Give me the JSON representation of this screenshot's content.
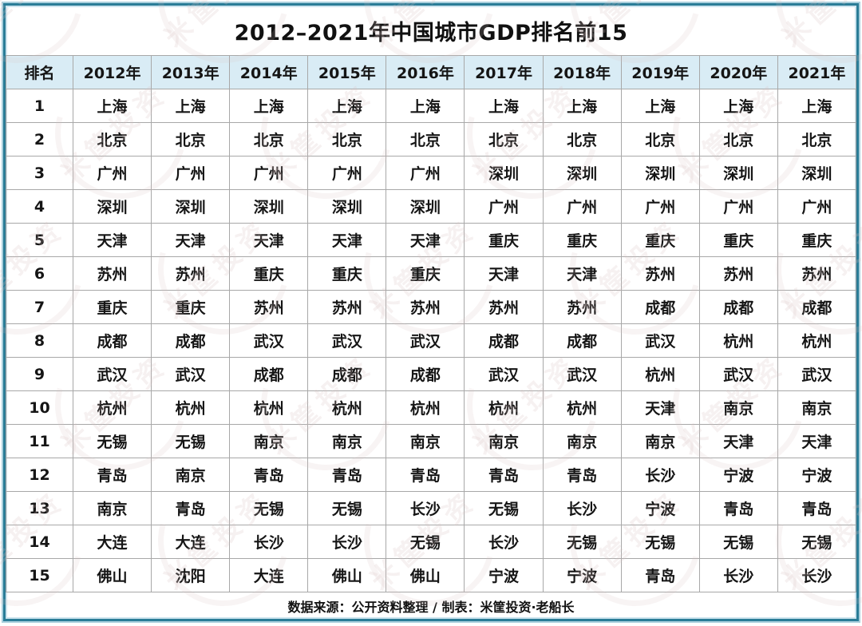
{
  "title": "2012–2021年中国城市GDP排名前15",
  "footer": {
    "text": "数据来源：公开资料整理 / 制表：米筐投资·老船长"
  },
  "watermark": {
    "text": "米筐投资"
  },
  "colors": {
    "frame_border_dark": "#2a7c97",
    "frame_border_light": "#a9cfdd",
    "header_bg": "#d9ecf5",
    "grid_line": "#a8a8a8",
    "text": "#151515",
    "watermark": "#d9c2c2"
  },
  "chart_data": {
    "type": "table",
    "title": "2012–2021年中国城市GDP排名前15",
    "columns": [
      "排名",
      "2012年",
      "2013年",
      "2014年",
      "2015年",
      "2016年",
      "2017年",
      "2018年",
      "2019年",
      "2020年",
      "2021年"
    ],
    "rows": [
      [
        "1",
        "上海",
        "上海",
        "上海",
        "上海",
        "上海",
        "上海",
        "上海",
        "上海",
        "上海",
        "上海"
      ],
      [
        "2",
        "北京",
        "北京",
        "北京",
        "北京",
        "北京",
        "北京",
        "北京",
        "北京",
        "北京",
        "北京"
      ],
      [
        "3",
        "广州",
        "广州",
        "广州",
        "广州",
        "广州",
        "深圳",
        "深圳",
        "深圳",
        "深圳",
        "深圳"
      ],
      [
        "4",
        "深圳",
        "深圳",
        "深圳",
        "深圳",
        "深圳",
        "广州",
        "广州",
        "广州",
        "广州",
        "广州"
      ],
      [
        "5",
        "天津",
        "天津",
        "天津",
        "天津",
        "天津",
        "重庆",
        "重庆",
        "重庆",
        "重庆",
        "重庆"
      ],
      [
        "6",
        "苏州",
        "苏州",
        "重庆",
        "重庆",
        "重庆",
        "天津",
        "天津",
        "苏州",
        "苏州",
        "苏州"
      ],
      [
        "7",
        "重庆",
        "重庆",
        "苏州",
        "苏州",
        "苏州",
        "苏州",
        "苏州",
        "成都",
        "成都",
        "成都"
      ],
      [
        "8",
        "成都",
        "成都",
        "武汉",
        "武汉",
        "武汉",
        "成都",
        "成都",
        "武汉",
        "杭州",
        "杭州"
      ],
      [
        "9",
        "武汉",
        "武汉",
        "成都",
        "成都",
        "成都",
        "武汉",
        "武汉",
        "杭州",
        "武汉",
        "武汉"
      ],
      [
        "10",
        "杭州",
        "杭州",
        "杭州",
        "杭州",
        "杭州",
        "杭州",
        "杭州",
        "天津",
        "南京",
        "南京"
      ],
      [
        "11",
        "无锡",
        "无锡",
        "南京",
        "南京",
        "南京",
        "南京",
        "南京",
        "南京",
        "天津",
        "天津"
      ],
      [
        "12",
        "青岛",
        "南京",
        "青岛",
        "青岛",
        "青岛",
        "青岛",
        "青岛",
        "长沙",
        "宁波",
        "宁波"
      ],
      [
        "13",
        "南京",
        "青岛",
        "无锡",
        "无锡",
        "长沙",
        "无锡",
        "长沙",
        "宁波",
        "青岛",
        "青岛"
      ],
      [
        "14",
        "大连",
        "大连",
        "长沙",
        "长沙",
        "无锡",
        "长沙",
        "无锡",
        "无锡",
        "无锡",
        "无锡"
      ],
      [
        "15",
        "佛山",
        "沈阳",
        "大连",
        "佛山",
        "佛山",
        "宁波",
        "宁波",
        "青岛",
        "长沙",
        "长沙"
      ]
    ],
    "source_note": "数据来源：公开资料整理 / 制表：米筐投资·老船长"
  }
}
